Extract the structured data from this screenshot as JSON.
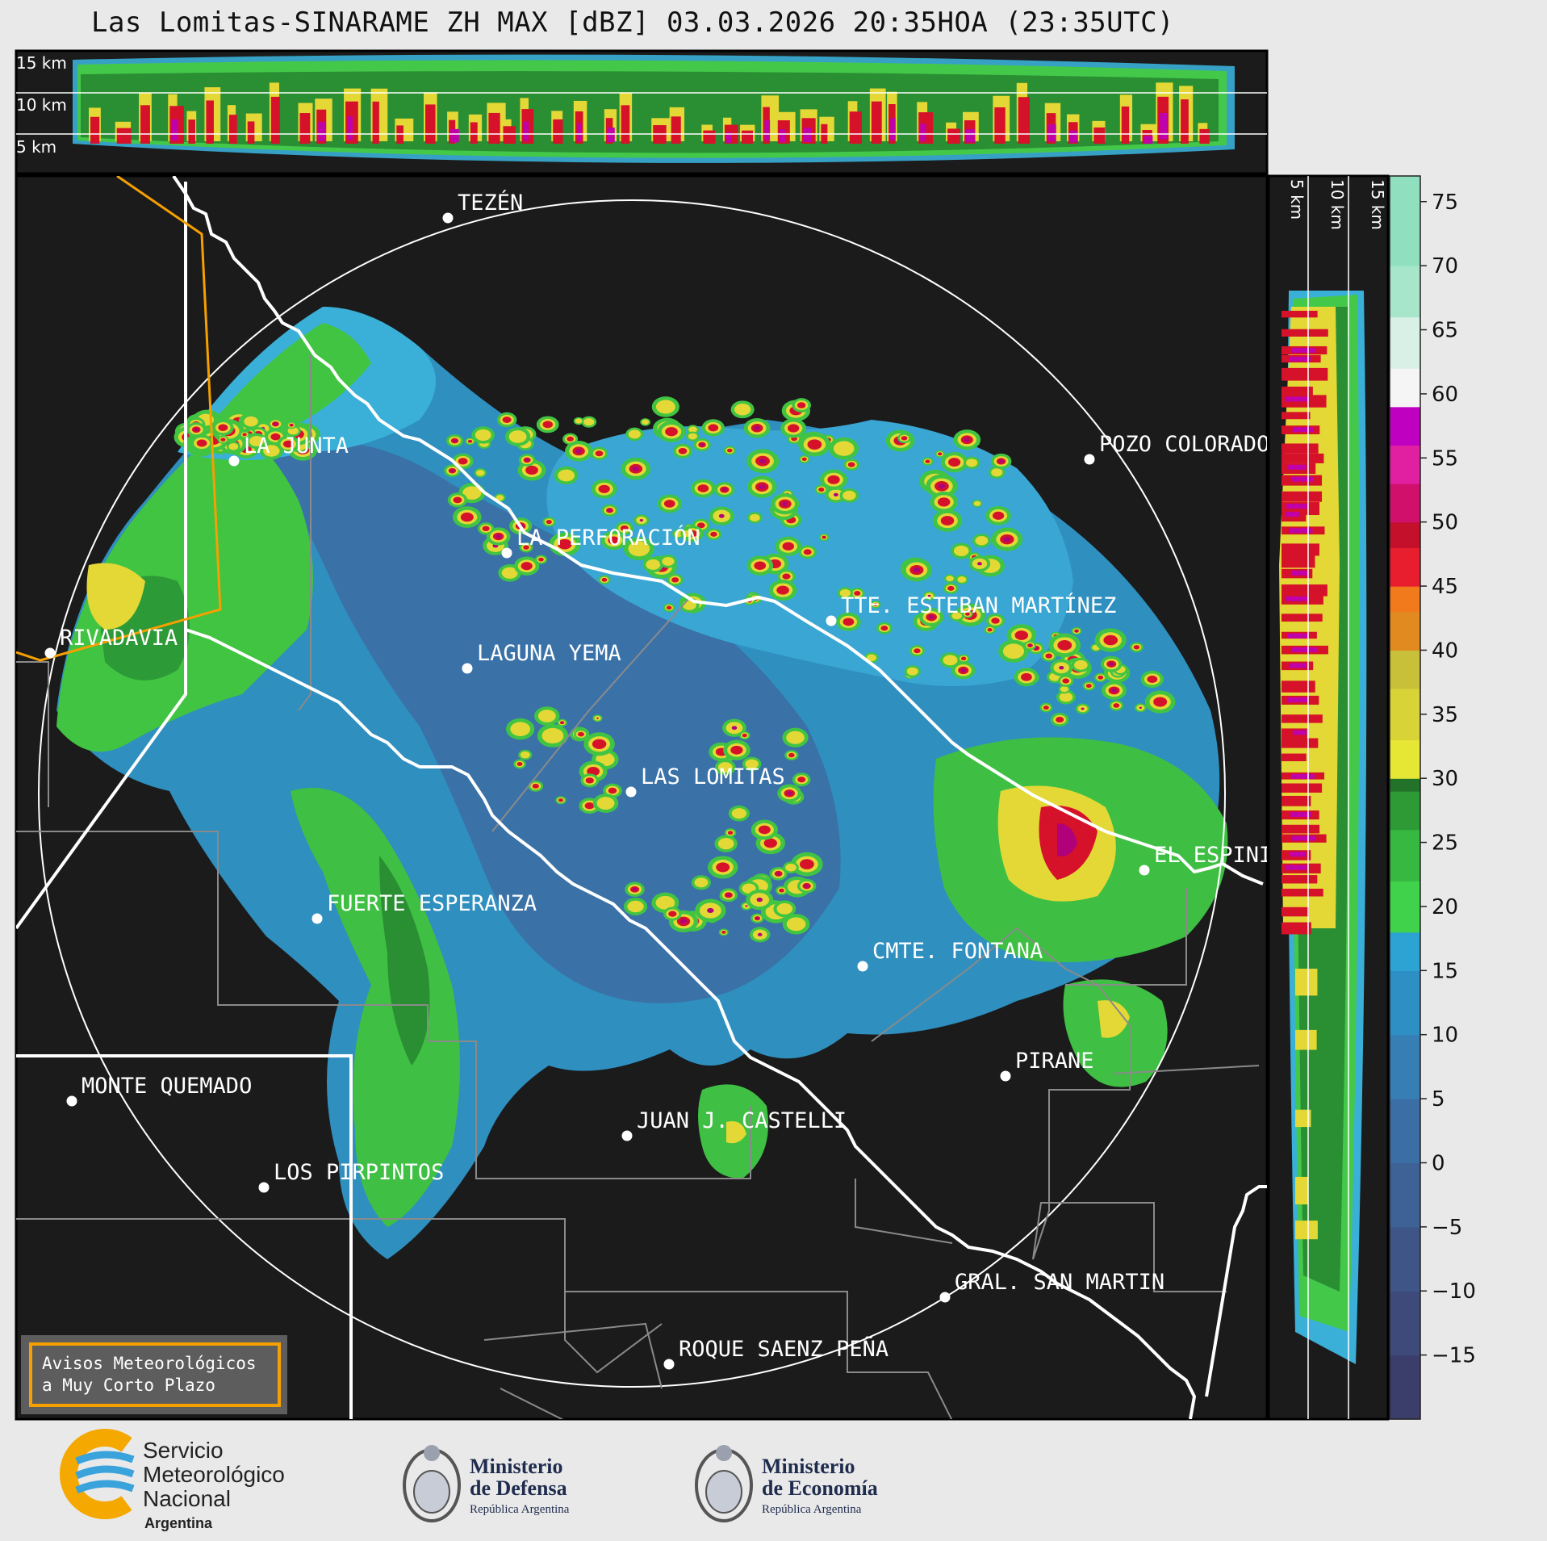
{
  "title": "Las Lomitas-SINARAME ZH MAX [dBZ] 03.03.2026 20:35HOA (23:35UTC)",
  "top_panel": {
    "height_labels": [
      "15 km",
      "10 km",
      "5 km"
    ]
  },
  "side_panel": {
    "height_labels": [
      "5 km",
      "10 km",
      "15 km"
    ]
  },
  "colorbar": {
    "unit": "dBZ",
    "ticks": [
      "75",
      "70",
      "65",
      "60",
      "55",
      "50",
      "45",
      "40",
      "35",
      "30",
      "25",
      "20",
      "15",
      "10",
      "5",
      "0",
      "−5",
      "−10",
      "−15"
    ],
    "tick_values": [
      75,
      70,
      65,
      60,
      55,
      50,
      45,
      40,
      35,
      30,
      25,
      20,
      15,
      10,
      5,
      0,
      -5,
      -10,
      -15
    ],
    "range": [
      -20,
      77
    ]
  },
  "places": [
    {
      "name": "TEZÉN"
    },
    {
      "name": "LA JUNTA"
    },
    {
      "name": "POZO COLORADO"
    },
    {
      "name": "LA PERFORACIÓN"
    },
    {
      "name": "TTE. ESTEBAN MARTÍNEZ"
    },
    {
      "name": "RIVADAVIA"
    },
    {
      "name": "LAGUNA YEMA"
    },
    {
      "name": "LAS LOMITAS"
    },
    {
      "name": "EL ESPINILLO"
    },
    {
      "name": "FUERTE ESPERANZA"
    },
    {
      "name": "CMTE. FONTANA"
    },
    {
      "name": "PIRANE"
    },
    {
      "name": "MONTE QUEMADO"
    },
    {
      "name": "JUAN J. CASTELLI"
    },
    {
      "name": "LOS PIRPINTOS"
    },
    {
      "name": "GRAL. SAN MARTIN"
    },
    {
      "name": "ROQUE SAENZ PEÑA"
    }
  ],
  "warning_box": {
    "line1": "Avisos Meteorológicos",
    "line2": "a Muy Corto Plazo"
  },
  "logos": {
    "smn": {
      "line1": "Servicio",
      "line2": "Meteorológico",
      "line3": "Nacional",
      "line4": "Argentina"
    },
    "defensa": {
      "line1": "Ministerio",
      "line2": "de Defensa",
      "line3": "República Argentina"
    },
    "economia": {
      "line1": "Ministerio",
      "line2": "de Economía",
      "line3": "República Argentina"
    }
  }
}
